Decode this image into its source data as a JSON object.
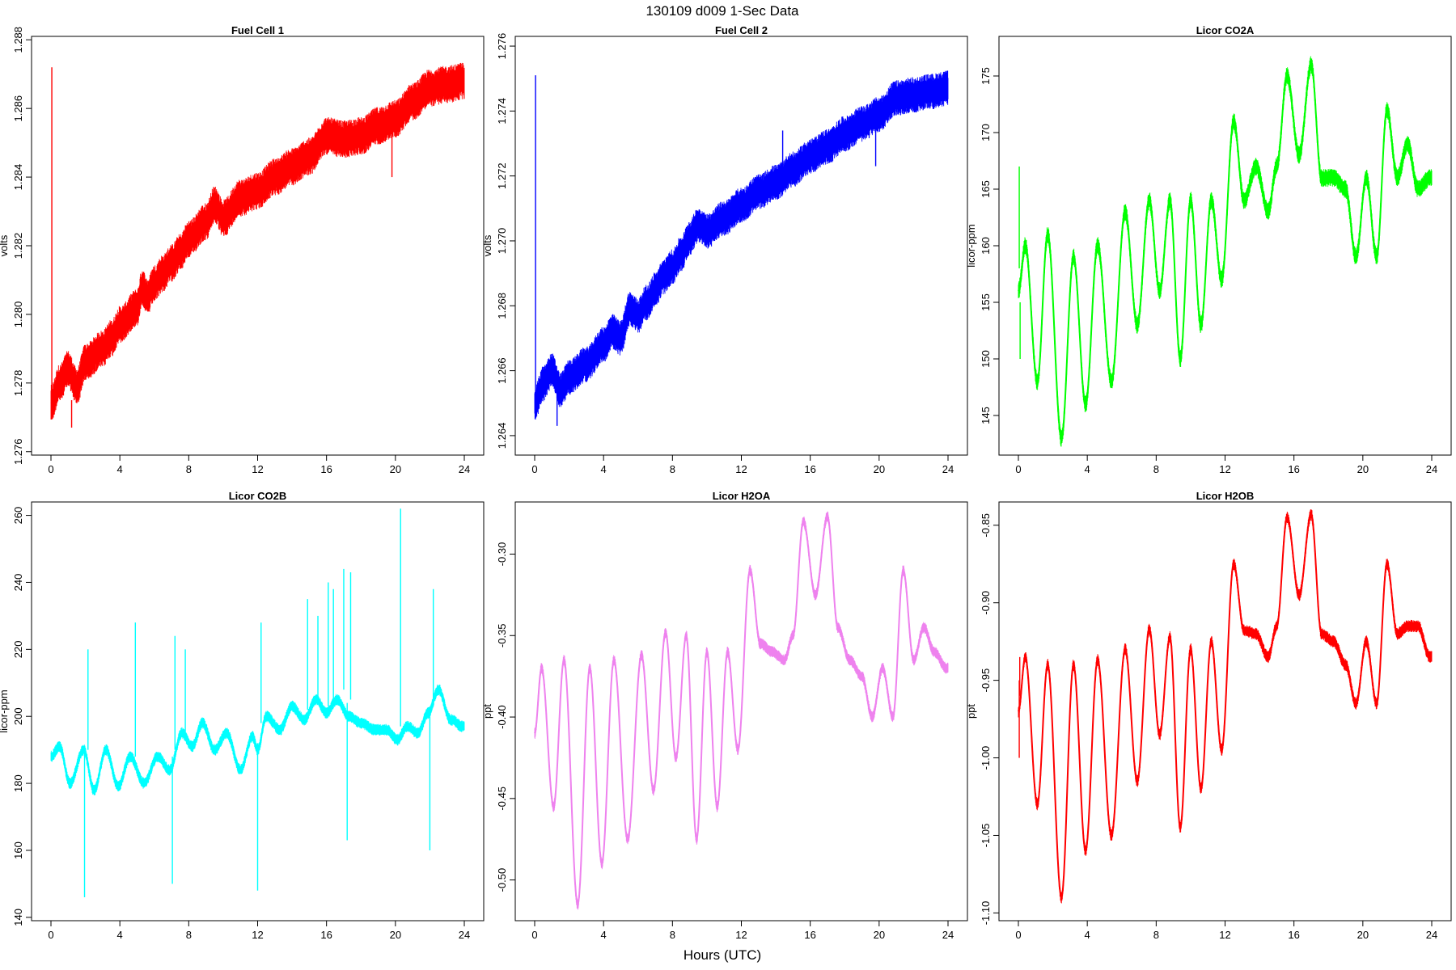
{
  "figure": {
    "title": "130109   d009   1-Sec Data",
    "xlabel": "Hours (UTC)"
  },
  "chart_data": [
    {
      "type": "line",
      "title": "Fuel Cell 1",
      "ylabel": "volts",
      "color": "#ff0000",
      "xlim": [
        0,
        24
      ],
      "ylim": [
        1.2759,
        1.2881
      ],
      "xticks": [
        0,
        4,
        8,
        12,
        16,
        20,
        24
      ],
      "yticks": [
        1.276,
        1.278,
        1.28,
        1.282,
        1.284,
        1.286,
        1.288
      ],
      "ytick_labels": [
        "1.276",
        "1.278",
        "1.280",
        "1.282",
        "1.284",
        "1.286",
        "1.288"
      ],
      "band_width": 0.0011,
      "series": [
        {
          "x": [
            0,
            0.5,
            1,
            1.5,
            2,
            3,
            3.5,
            4,
            5,
            5.3,
            5.6,
            6,
            6.5,
            7,
            7.5,
            8,
            9,
            9.5,
            10,
            11,
            12,
            13,
            14,
            15,
            16,
            17,
            18,
            19,
            20,
            21,
            22,
            23,
            24
          ],
          "y": [
            1.2774,
            1.278,
            1.2784,
            1.2779,
            1.2786,
            1.279,
            1.2793,
            1.2797,
            1.2802,
            1.2808,
            1.2805,
            1.2809,
            1.2812,
            1.2815,
            1.2818,
            1.2822,
            1.2827,
            1.2832,
            1.2828,
            1.2834,
            1.2836,
            1.284,
            1.2843,
            1.2846,
            1.2852,
            1.2851,
            1.2852,
            1.2855,
            1.2857,
            1.2862,
            1.2866,
            1.2867,
            1.2868
          ]
        }
      ],
      "spikes": [
        {
          "x": 0.05,
          "y_from": 1.2777,
          "y_to": 1.2872
        },
        {
          "x": 1.2,
          "y_from": 1.2775,
          "y_to": 1.2767
        },
        {
          "x": 19.8,
          "y_from": 1.2853,
          "y_to": 1.284
        }
      ]
    },
    {
      "type": "line",
      "title": "Fuel Cell 2",
      "ylabel": "volts",
      "color": "#0000ff",
      "xlim": [
        0,
        24
      ],
      "ylim": [
        1.2634,
        1.2763
      ],
      "xticks": [
        0,
        4,
        8,
        12,
        16,
        20,
        24
      ],
      "yticks": [
        1.264,
        1.266,
        1.268,
        1.27,
        1.272,
        1.274,
        1.276
      ],
      "ytick_labels": [
        "1.264",
        "1.266",
        "1.268",
        "1.270",
        "1.272",
        "1.274",
        "1.276"
      ],
      "band_width": 0.0011,
      "series": [
        {
          "x": [
            0,
            0.5,
            1,
            1.5,
            2,
            3,
            4,
            4.5,
            5,
            5.5,
            6,
            6.5,
            7,
            7.5,
            8,
            8.5,
            9,
            9.5,
            10,
            11,
            12,
            13,
            14,
            15,
            16,
            17,
            18,
            19,
            20,
            21,
            22,
            23,
            24
          ],
          "y": [
            1.265,
            1.2656,
            1.266,
            1.2654,
            1.2658,
            1.2662,
            1.2668,
            1.2672,
            1.267,
            1.2679,
            1.2677,
            1.2681,
            1.2685,
            1.2689,
            1.2692,
            1.2696,
            1.2701,
            1.2705,
            1.2703,
            1.2707,
            1.2711,
            1.2715,
            1.2718,
            1.2722,
            1.2726,
            1.2729,
            1.2733,
            1.2736,
            1.2739,
            1.2744,
            1.2745,
            1.2746,
            1.2747
          ]
        }
      ],
      "spikes": [
        {
          "x": 0.05,
          "y_from": 1.2648,
          "y_to": 1.2751
        },
        {
          "x": 1.3,
          "y_from": 1.2652,
          "y_to": 1.2643
        },
        {
          "x": 14.4,
          "y_from": 1.2718,
          "y_to": 1.2734
        },
        {
          "x": 19.8,
          "y_from": 1.2735,
          "y_to": 1.2723
        }
      ]
    },
    {
      "type": "line",
      "title": "Licor CO2A",
      "ylabel": "licor-ppm",
      "color": "#00ff00",
      "xlim": [
        0,
        24
      ],
      "ylim": [
        141.5,
        178.5
      ],
      "xticks": [
        0,
        4,
        8,
        12,
        16,
        20,
        24
      ],
      "yticks": [
        145,
        150,
        155,
        160,
        165,
        170,
        175
      ],
      "ytick_labels": [
        "145",
        "150",
        "155",
        "160",
        "165",
        "170",
        "175"
      ],
      "band_width": 1.6,
      "series": [
        {
          "x": [
            0,
            0.4,
            1.1,
            1.7,
            2.5,
            3.2,
            3.9,
            4.6,
            5.4,
            6.2,
            6.9,
            7.6,
            8.2,
            8.8,
            9.4,
            10.0,
            10.6,
            11.2,
            11.8,
            12.5,
            13.1,
            13.8,
            14.5,
            15.0,
            15.6,
            16.3,
            17.0,
            17.6,
            18.3,
            19.0,
            19.6,
            20.2,
            20.8,
            21.4,
            22.0,
            22.6,
            23.2,
            23.9
          ],
          "y": [
            156,
            160,
            148,
            161,
            143,
            159,
            146,
            160,
            148,
            163,
            153,
            164,
            156,
            164,
            150,
            164,
            153,
            164,
            157,
            171,
            164,
            167,
            163,
            167,
            175,
            168,
            176,
            166,
            166,
            165,
            159,
            166,
            159,
            172,
            166,
            169,
            165,
            166
          ]
        }
      ],
      "spikes": [
        {
          "x": 0.05,
          "y_from": 158,
          "y_to": 167
        },
        {
          "x": 0.1,
          "y_from": 155,
          "y_to": 150
        }
      ]
    },
    {
      "type": "line",
      "title": "Licor CO2B",
      "ylabel": "licor-ppm",
      "color": "#00ffff",
      "xlim": [
        0,
        24
      ],
      "ylim": [
        139,
        264
      ],
      "xticks": [
        0,
        4,
        8,
        12,
        16,
        20,
        24
      ],
      "yticks": [
        140,
        160,
        180,
        200,
        220,
        240,
        260
      ],
      "ytick_labels": [
        "140",
        "160",
        "180",
        "200",
        "220",
        "240",
        "260"
      ],
      "band_width": 3.5,
      "series": [
        {
          "x": [
            0,
            0.5,
            1.1,
            1.9,
            2.5,
            3.2,
            3.9,
            4.6,
            5.4,
            6.2,
            6.9,
            7.6,
            8.2,
            8.8,
            9.5,
            10.2,
            11.0,
            11.7,
            12.0,
            12.5,
            13.3,
            14.0,
            14.7,
            15.4,
            16.0,
            16.6,
            17.3,
            18.0,
            18.8,
            19.5,
            20.1,
            20.7,
            21.3,
            21.9,
            22.5,
            23.2,
            23.9
          ],
          "y": [
            188,
            191,
            180,
            190,
            178,
            190,
            179,
            188,
            180,
            188,
            184,
            195,
            191,
            198,
            190,
            195,
            184,
            194,
            190,
            200,
            196,
            203,
            199,
            205,
            201,
            205,
            200,
            198,
            196,
            196,
            193,
            197,
            195,
            201,
            208,
            199,
            197
          ]
        }
      ],
      "spikes": [
        {
          "x": 1.95,
          "y_from": 190,
          "y_to": 146
        },
        {
          "x": 2.15,
          "y_from": 190,
          "y_to": 220
        },
        {
          "x": 4.9,
          "y_from": 188,
          "y_to": 228
        },
        {
          "x": 7.05,
          "y_from": 188,
          "y_to": 150
        },
        {
          "x": 7.2,
          "y_from": 190,
          "y_to": 224
        },
        {
          "x": 7.8,
          "y_from": 195,
          "y_to": 220
        },
        {
          "x": 12.0,
          "y_from": 192,
          "y_to": 148
        },
        {
          "x": 12.2,
          "y_from": 198,
          "y_to": 228
        },
        {
          "x": 14.9,
          "y_from": 202,
          "y_to": 235
        },
        {
          "x": 15.5,
          "y_from": 204,
          "y_to": 230
        },
        {
          "x": 16.1,
          "y_from": 203,
          "y_to": 240
        },
        {
          "x": 16.4,
          "y_from": 205,
          "y_to": 238
        },
        {
          "x": 17.0,
          "y_from": 208,
          "y_to": 244
        },
        {
          "x": 17.2,
          "y_from": 204,
          "y_to": 163
        },
        {
          "x": 17.4,
          "y_from": 205,
          "y_to": 243
        },
        {
          "x": 20.3,
          "y_from": 197,
          "y_to": 262
        },
        {
          "x": 22.0,
          "y_from": 200,
          "y_to": 160
        },
        {
          "x": 22.2,
          "y_from": 203,
          "y_to": 238
        }
      ]
    },
    {
      "type": "line",
      "title": "Licor H2OA",
      "ylabel": "ppt",
      "color": "#ee82ee",
      "xlim": [
        0,
        24
      ],
      "ylim": [
        -0.525,
        -0.268
      ],
      "xticks": [
        0,
        4,
        8,
        12,
        16,
        20,
        24
      ],
      "yticks": [
        -0.5,
        -0.45,
        -0.4,
        -0.35,
        -0.3
      ],
      "ytick_labels": [
        "-0.50",
        "-0.45",
        "-0.40",
        "-0.35",
        "-0.30"
      ],
      "band_width": 0.007,
      "series": [
        {
          "x": [
            0,
            0.4,
            1.1,
            1.7,
            2.5,
            3.2,
            3.9,
            4.6,
            5.4,
            6.2,
            6.9,
            7.6,
            8.2,
            8.8,
            9.4,
            10.0,
            10.6,
            11.2,
            11.8,
            12.5,
            13.1,
            13.8,
            14.5,
            15.0,
            15.6,
            16.3,
            17.0,
            17.6,
            18.3,
            19.0,
            19.6,
            20.2,
            20.8,
            21.4,
            22.0,
            22.6,
            23.2,
            23.9
          ],
          "y": [
            -0.41,
            -0.37,
            -0.455,
            -0.365,
            -0.515,
            -0.37,
            -0.49,
            -0.365,
            -0.475,
            -0.362,
            -0.445,
            -0.348,
            -0.425,
            -0.35,
            -0.475,
            -0.36,
            -0.455,
            -0.36,
            -0.42,
            -0.31,
            -0.355,
            -0.36,
            -0.365,
            -0.35,
            -0.28,
            -0.325,
            -0.277,
            -0.345,
            -0.365,
            -0.375,
            -0.4,
            -0.37,
            -0.4,
            -0.31,
            -0.365,
            -0.345,
            -0.36,
            -0.37
          ]
        }
      ],
      "spikes": []
    },
    {
      "type": "line",
      "title": "Licor H2OB",
      "ylabel": "ppt",
      "color": "#ff0000",
      "xlim": [
        0,
        24
      ],
      "ylim": [
        -1.105,
        -0.835
      ],
      "xticks": [
        0,
        4,
        8,
        12,
        16,
        20,
        24
      ],
      "yticks": [
        -1.1,
        -1.05,
        -1.0,
        -0.95,
        -0.9,
        -0.85
      ],
      "ytick_labels": [
        "-1.10",
        "-1.05",
        "-1.00",
        "-0.95",
        "-0.90",
        "-0.85"
      ],
      "band_width": 0.008,
      "series": [
        {
          "x": [
            0,
            0.4,
            1.1,
            1.7,
            2.5,
            3.2,
            3.9,
            4.6,
            5.4,
            6.2,
            6.9,
            7.6,
            8.2,
            8.8,
            9.4,
            10.0,
            10.6,
            11.2,
            11.8,
            12.5,
            13.1,
            13.8,
            14.5,
            15.0,
            15.6,
            16.3,
            17.0,
            17.6,
            18.3,
            19.0,
            19.6,
            20.2,
            20.8,
            21.4,
            22.0,
            22.6,
            23.2,
            23.9
          ],
          "y": [
            -0.97,
            -0.935,
            -1.03,
            -0.94,
            -1.09,
            -0.94,
            -1.06,
            -0.937,
            -1.05,
            -0.93,
            -1.015,
            -0.917,
            -0.985,
            -0.922,
            -1.045,
            -0.93,
            -1.02,
            -0.925,
            -0.995,
            -0.875,
            -0.918,
            -0.92,
            -0.935,
            -0.915,
            -0.845,
            -0.895,
            -0.843,
            -0.92,
            -0.925,
            -0.94,
            -0.965,
            -0.925,
            -0.965,
            -0.875,
            -0.92,
            -0.915,
            -0.915,
            -0.935
          ]
        }
      ],
      "spikes": [
        {
          "x": 0.05,
          "y_from": -0.95,
          "y_to": -1.0
        },
        {
          "x": 0.08,
          "y_from": -0.96,
          "y_to": -0.935
        }
      ]
    }
  ]
}
